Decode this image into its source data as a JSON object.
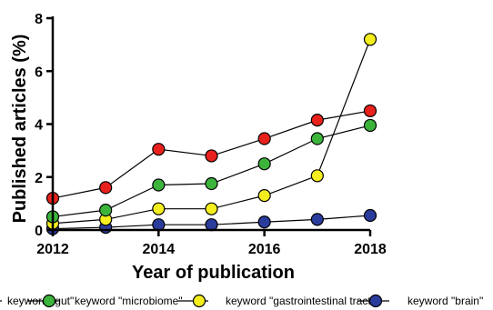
{
  "chart_data": {
    "type": "line",
    "title": "",
    "xlabel": "Year of publication",
    "ylabel": "Published articles (%)",
    "x": [
      2012,
      2013,
      2014,
      2015,
      2016,
      2017,
      2018
    ],
    "xlim": [
      2012,
      2018
    ],
    "ylim": [
      0,
      8
    ],
    "xticks": [
      2012,
      2014,
      2016,
      2018
    ],
    "yticks": [
      0,
      2,
      4,
      6,
      8
    ],
    "grid": false,
    "legend_position": "bottom",
    "series": [
      {
        "name": "keyword \"gut\"",
        "color": "#e8211c",
        "values": [
          1.2,
          1.6,
          3.05,
          2.8,
          3.45,
          4.15,
          4.5
        ]
      },
      {
        "name": "keyword \"microbiome\"",
        "color": "#3cb43c",
        "values": [
          0.5,
          0.75,
          1.7,
          1.75,
          2.5,
          3.45,
          3.95
        ]
      },
      {
        "name": "keyword \"gastrointestinal tract\"",
        "color": "#f5ee1e",
        "values": [
          0.25,
          0.4,
          0.8,
          0.8,
          1.3,
          2.05,
          7.2
        ]
      },
      {
        "name": "keyword \"brain\"",
        "color": "#2a3c9c",
        "values": [
          0.05,
          0.1,
          0.2,
          0.2,
          0.3,
          0.4,
          0.55
        ]
      }
    ]
  }
}
